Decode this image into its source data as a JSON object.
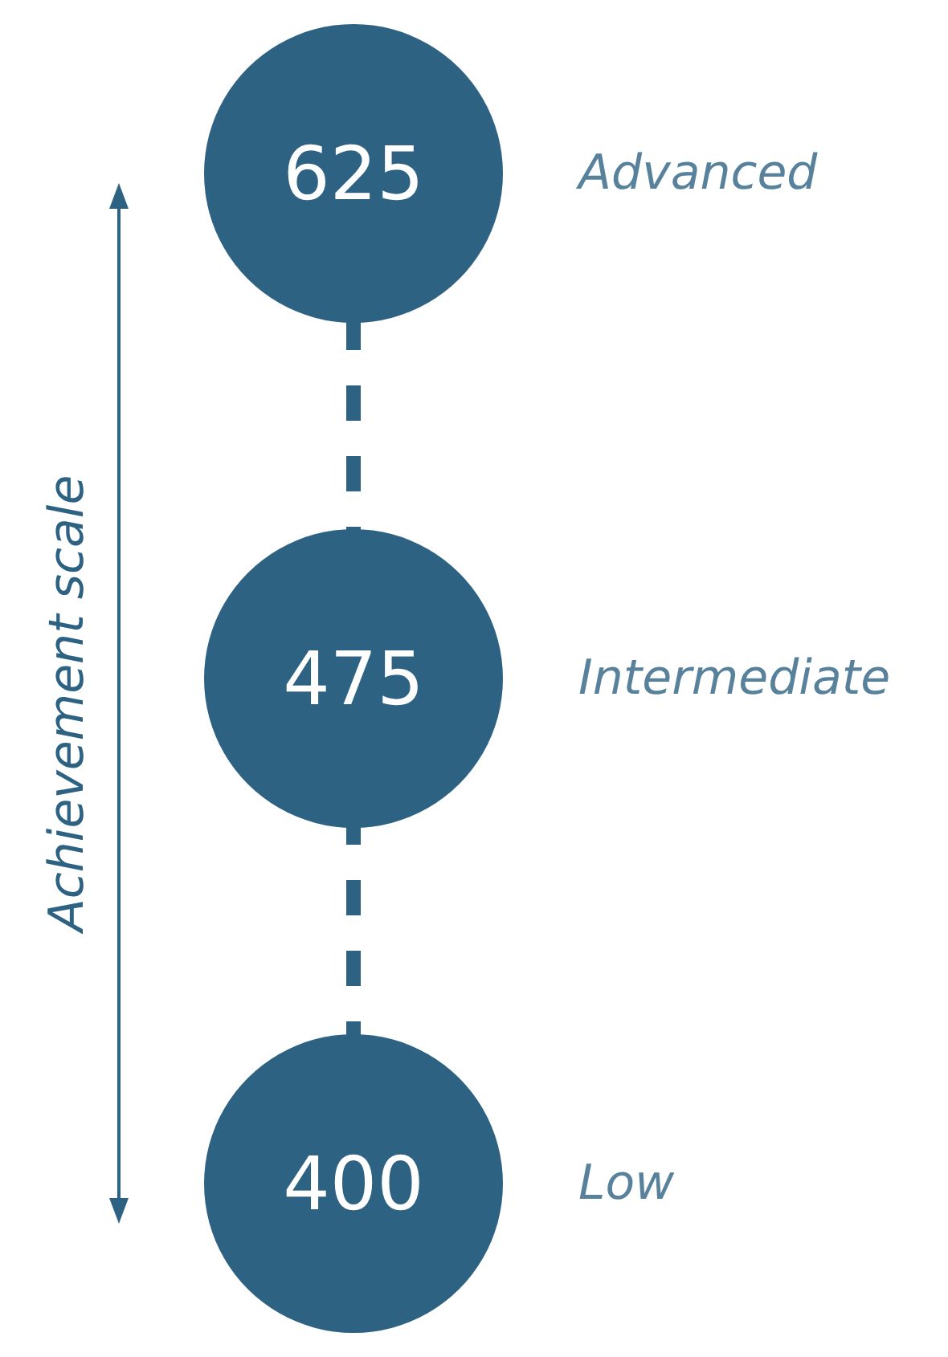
{
  "chart_data": {
    "type": "other",
    "ylabel": "Achievement scale",
    "categories": [
      "Advanced",
      "Intermediate",
      "Low"
    ],
    "values": [
      625,
      475,
      400
    ],
    "data_labels": true,
    "color": "#2e6283"
  }
}
